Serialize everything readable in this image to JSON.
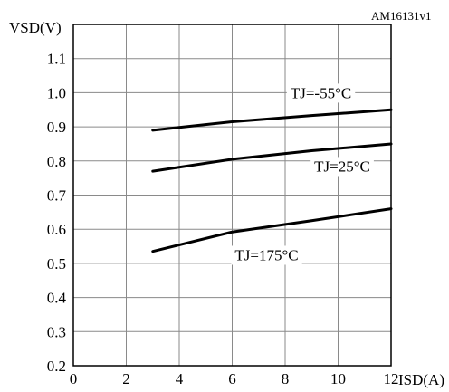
{
  "chart_data": {
    "type": "line",
    "corner_note": "AM16131v1",
    "ylabel": "VSD(V)",
    "xlabel": "ISD(A)",
    "xlim": [
      0,
      12
    ],
    "ylim": [
      0.2,
      1.2
    ],
    "x_ticks": [
      "0",
      "2",
      "4",
      "6",
      "8",
      "10",
      "12"
    ],
    "y_ticks": [
      "0.2",
      "0.3",
      "0.4",
      "0.5",
      "0.6",
      "0.7",
      "0.8",
      "0.9",
      "1.0",
      "1.1"
    ],
    "grid": true,
    "series": [
      {
        "name": "TJ=-55°C",
        "x": [
          3,
          6,
          9,
          12
        ],
        "y": [
          0.89,
          0.915,
          0.933,
          0.95
        ]
      },
      {
        "name": "TJ=25°C",
        "x": [
          3,
          6,
          9,
          12
        ],
        "y": [
          0.77,
          0.805,
          0.83,
          0.85
        ]
      },
      {
        "name": "TJ=175°C",
        "x": [
          3,
          6,
          9,
          12
        ],
        "y": [
          0.535,
          0.592,
          0.625,
          0.66
        ]
      }
    ]
  }
}
